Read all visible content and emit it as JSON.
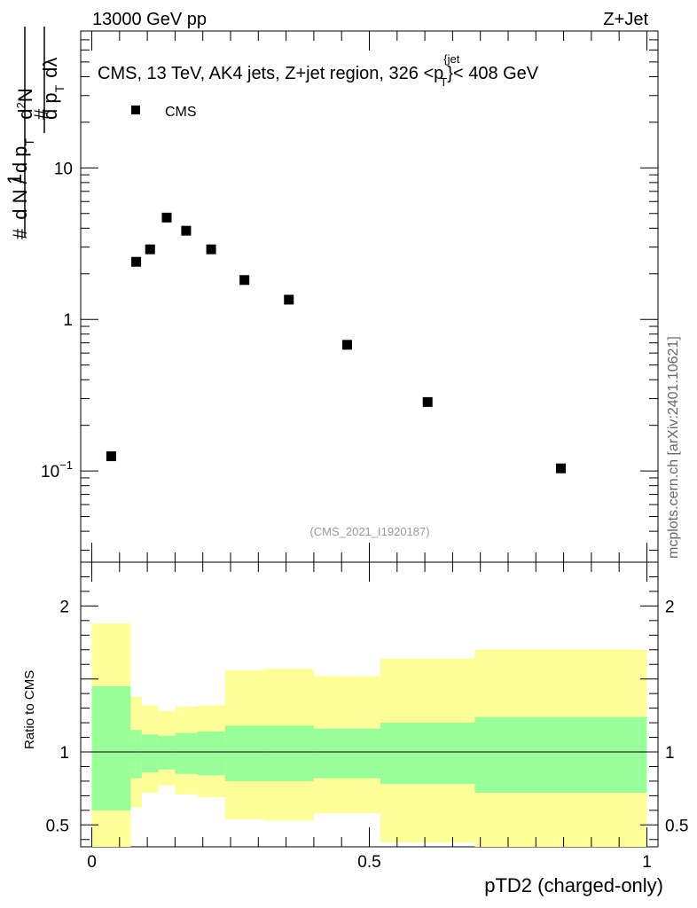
{
  "header": {
    "left": "13000 GeV pp",
    "right": "Z+Jet"
  },
  "chart_data": {
    "type": "scatter",
    "title_main": "CMS, 13 TeV, AK4 jets, Z+jet region, 326 <p",
    "title_sup": "{jet",
    "title_sub": "T",
    "title_end": "}< 408 GeV",
    "legend": "CMS",
    "ylabel": {
      "hash1": "#",
      "one": "1",
      "dn": "d N / d p",
      "t1": "T",
      "hash2": "#",
      "d2n": "d",
      "two": "2",
      "n": "N",
      "dpt": "d p",
      "t2": "T",
      "dl": "dλ"
    },
    "yscale": "log",
    "ylim": [
      0.025,
      80
    ],
    "xlim": [
      -0.02,
      1.02
    ],
    "yticks": [
      {
        "v": 10,
        "label": "10"
      },
      {
        "v": 1,
        "label": "1"
      },
      {
        "v": 0.1,
        "label": "10",
        "sup": "−1"
      }
    ],
    "points": [
      {
        "x": 0.035,
        "y": 0.125
      },
      {
        "x": 0.08,
        "y": 2.4
      },
      {
        "x": 0.105,
        "y": 2.9
      },
      {
        "x": 0.135,
        "y": 4.7
      },
      {
        "x": 0.17,
        "y": 3.85
      },
      {
        "x": 0.215,
        "y": 2.9
      },
      {
        "x": 0.275,
        "y": 1.82
      },
      {
        "x": 0.355,
        "y": 1.35
      },
      {
        "x": 0.46,
        "y": 0.68
      },
      {
        "x": 0.605,
        "y": 0.285
      },
      {
        "x": 0.845,
        "y": 0.104
      }
    ],
    "watermark": "(CMS_2021_I1920187)",
    "side_text": "mcplots.cern.ch [arXiv:2401.10621]",
    "ratio": {
      "ylabel": "Ratio to CMS",
      "ylim": [
        0.35,
        2.3
      ],
      "yticks": [
        {
          "v": 2,
          "label": "2"
        },
        {
          "v": 1,
          "label": "1"
        },
        {
          "v": 0.5,
          "label": "0.5"
        }
      ],
      "bins": [
        {
          "x0": 0.0,
          "x1": 0.07,
          "g_lo": 0.6,
          "g_hi": 1.45,
          "y_lo": 0.35,
          "y_hi": 1.88
        },
        {
          "x0": 0.07,
          "x1": 0.09,
          "g_lo": 0.82,
          "g_hi": 1.15,
          "y_lo": 0.62,
          "y_hi": 1.38
        },
        {
          "x0": 0.09,
          "x1": 0.12,
          "g_lo": 0.86,
          "g_hi": 1.12,
          "y_lo": 0.72,
          "y_hi": 1.32
        },
        {
          "x0": 0.12,
          "x1": 0.15,
          "g_lo": 0.88,
          "g_hi": 1.11,
          "y_lo": 0.77,
          "y_hi": 1.28
        },
        {
          "x0": 0.15,
          "x1": 0.19,
          "g_lo": 0.85,
          "g_hi": 1.13,
          "y_lo": 0.71,
          "y_hi": 1.31
        },
        {
          "x0": 0.19,
          "x1": 0.24,
          "g_lo": 0.84,
          "g_hi": 1.14,
          "y_lo": 0.69,
          "y_hi": 1.32
        },
        {
          "x0": 0.24,
          "x1": 0.31,
          "g_lo": 0.8,
          "g_hi": 1.18,
          "y_lo": 0.54,
          "y_hi": 1.56
        },
        {
          "x0": 0.31,
          "x1": 0.4,
          "g_lo": 0.8,
          "g_hi": 1.18,
          "y_lo": 0.53,
          "y_hi": 1.57
        },
        {
          "x0": 0.4,
          "x1": 0.52,
          "g_lo": 0.82,
          "g_hi": 1.16,
          "y_lo": 0.58,
          "y_hi": 1.52
        },
        {
          "x0": 0.52,
          "x1": 0.69,
          "g_lo": 0.78,
          "g_hi": 1.2,
          "y_lo": 0.38,
          "y_hi": 1.64
        },
        {
          "x0": 0.69,
          "x1": 1.0,
          "g_lo": 0.72,
          "g_hi": 1.24,
          "y_lo": 0.35,
          "y_hi": 1.7
        }
      ]
    },
    "xticks": [
      {
        "v": 0,
        "label": "0"
      },
      {
        "v": 0.5,
        "label": "0.5"
      },
      {
        "v": 1,
        "label": "1"
      }
    ],
    "xlabel": "pTD2 (charged-only)",
    "colors": {
      "green": "#99ff99",
      "yellow": "#ffff99",
      "marker": "#000000",
      "watermark": "#999999",
      "side": "#666666"
    }
  }
}
